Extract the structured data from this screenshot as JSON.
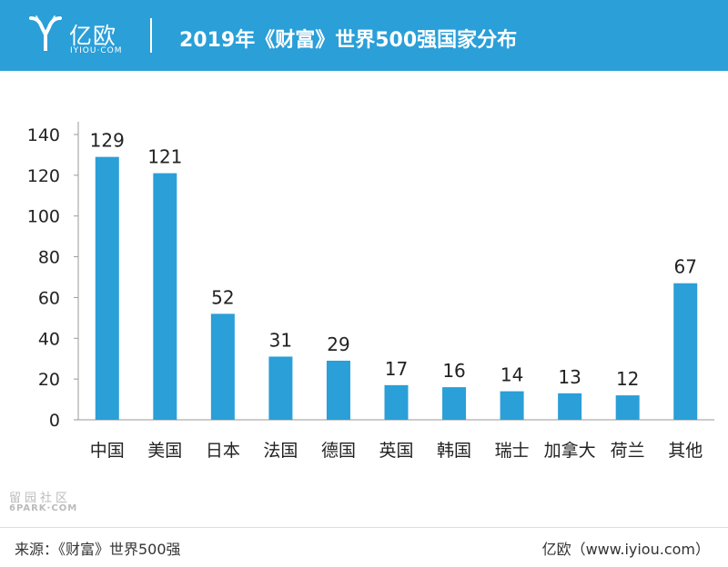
{
  "header": {
    "logo_name": "亿欧",
    "logo_domain": "IYIOU·COM",
    "title": "2019年《财富》世界500强国家分布"
  },
  "chart_data": {
    "type": "bar",
    "title": "2019年《财富》世界500强国家分布",
    "xlabel": "",
    "ylabel": "",
    "categories": [
      "中国",
      "美国",
      "日本",
      "法国",
      "德国",
      "英国",
      "韩国",
      "瑞士",
      "加拿大",
      "荷兰",
      "其他"
    ],
    "values": [
      129,
      121,
      52,
      31,
      29,
      17,
      16,
      14,
      13,
      12,
      67
    ],
    "ylim": [
      0,
      140
    ],
    "yticks": [
      0,
      20,
      40,
      60,
      80,
      100,
      120,
      140
    ],
    "color": "#2a9fd8",
    "grid": false
  },
  "watermark": {
    "cn": "留园社区",
    "en": "6PARK·COM"
  },
  "footer": {
    "source": "来源：《财富》世界500强",
    "credit": "亿欧（www.iyiou.com）"
  }
}
